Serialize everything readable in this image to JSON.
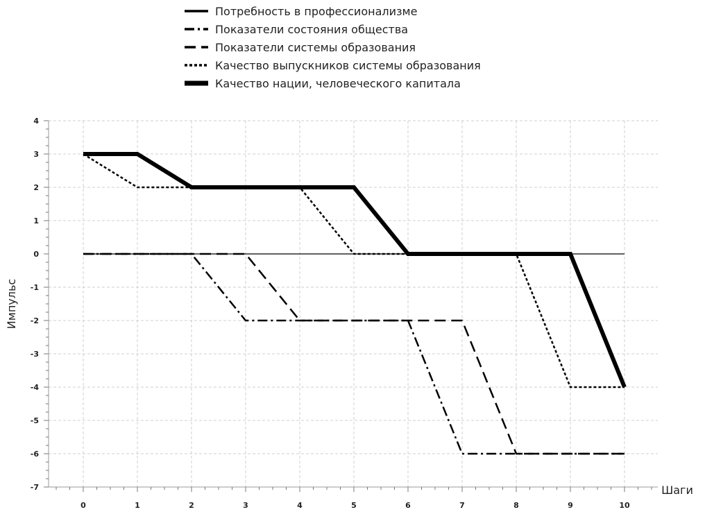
{
  "chart_data": {
    "type": "line",
    "title": "",
    "xlabel": "Шаги",
    "ylabel": "Импульс",
    "xlim": [
      0,
      10
    ],
    "ylim": [
      -7,
      4
    ],
    "x_ticks": [
      0,
      1,
      2,
      3,
      4,
      5,
      6,
      7,
      8,
      9,
      10
    ],
    "y_ticks": [
      4,
      3,
      2,
      1,
      0,
      -1,
      -2,
      -3,
      -4,
      -5,
      -6,
      -7
    ],
    "grid": true,
    "legend_position": "top",
    "x": [
      0,
      1,
      2,
      3,
      4,
      5,
      6,
      7,
      8,
      9,
      10
    ],
    "series": [
      {
        "name": "Потребность в профессионализме",
        "style": "solid",
        "values": [
          0,
          0,
          0,
          0,
          0,
          0,
          0,
          0,
          0,
          0,
          0
        ]
      },
      {
        "name": "Показатели состояния общества",
        "style": "dash-dot",
        "values": [
          0,
          0,
          0,
          -2,
          -2,
          -2,
          -2,
          -6,
          -6,
          -6,
          -6
        ]
      },
      {
        "name": "Показатели системы образования",
        "style": "dashed",
        "values": [
          0,
          0,
          0,
          0,
          -2,
          -2,
          -2,
          -2,
          -6,
          -6,
          -6
        ]
      },
      {
        "name": "Качество выпускников системы образования",
        "style": "dotted",
        "values": [
          3,
          2,
          2,
          2,
          2,
          0,
          0,
          0,
          0,
          -4,
          -4
        ]
      },
      {
        "name": "Качество нации, человеческого капитала",
        "style": "bold",
        "values": [
          3,
          3,
          2,
          2,
          2,
          2,
          0,
          0,
          0,
          0,
          -4
        ]
      }
    ]
  }
}
